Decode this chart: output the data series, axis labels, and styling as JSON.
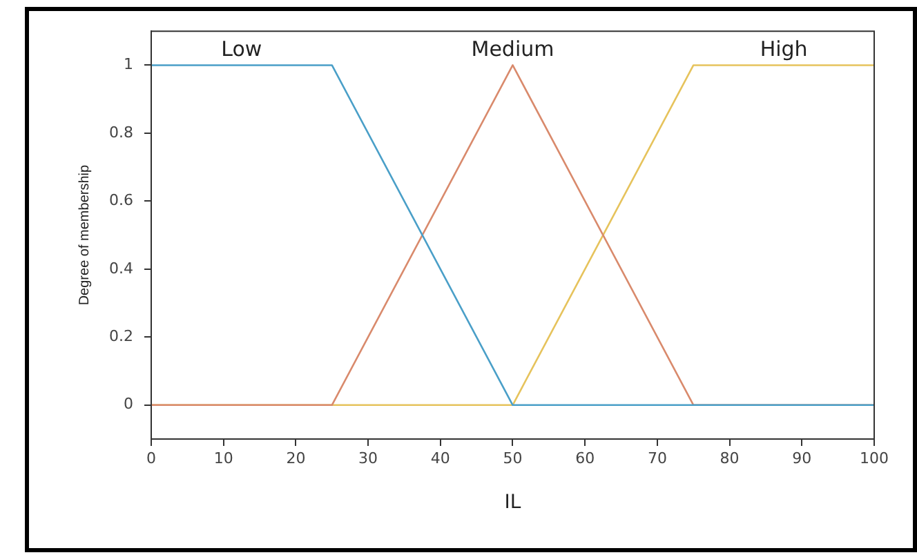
{
  "chart_data": {
    "type": "line",
    "xlabel": "IL",
    "ylabel": "Degree of membership",
    "xlim": [
      0,
      100
    ],
    "xticks": [
      0,
      10,
      20,
      30,
      40,
      50,
      60,
      70,
      80,
      90,
      100
    ],
    "ylim": [
      -0.1,
      1.1
    ],
    "yticks": [
      0,
      0.2,
      0.4,
      0.6,
      0.8,
      1
    ],
    "grid": false,
    "legend": false,
    "marker": "none",
    "line_style": "solid",
    "series": [
      {
        "name": "Low",
        "color": "#4a9fc8",
        "x": [
          0,
          25,
          50,
          100
        ],
        "values": [
          1,
          1,
          0,
          0
        ]
      },
      {
        "name": "Medium",
        "color": "#d98a6c",
        "x": [
          0,
          25,
          50,
          75,
          100
        ],
        "values": [
          0,
          0,
          1,
          0,
          0
        ]
      },
      {
        "name": "High",
        "color": "#e6c35c",
        "x": [
          0,
          50,
          75,
          100
        ],
        "values": [
          0,
          0,
          1,
          1
        ]
      }
    ]
  }
}
